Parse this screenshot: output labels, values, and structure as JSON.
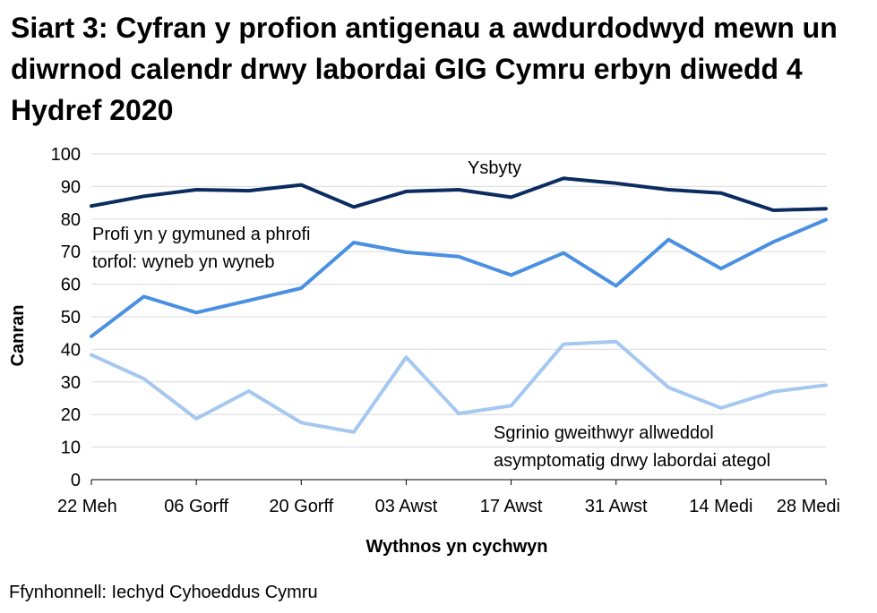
{
  "chart_data": {
    "type": "line",
    "title": "Siart 3: Cyfran y profion antigenau a awdurdodwyd mewn un diwrnod calendr drwy labordai GIG Cymru erbyn diwedd 4 Hydref 2020",
    "xlabel": "Wythnos yn cychwyn",
    "ylabel": "Canran",
    "ylim": [
      0,
      100
    ],
    "yticks": [
      0,
      10,
      20,
      30,
      40,
      50,
      60,
      70,
      80,
      90,
      100
    ],
    "x": [
      "22 Meh",
      "29 Meh",
      "06 Gorff",
      "13 Gorff",
      "20 Gorff",
      "27 Gorff",
      "03 Awst",
      "10 Awst",
      "17 Awst",
      "24 Awst",
      "31 Awst",
      "07 Medi",
      "14 Medi",
      "21 Medi",
      "28 Medi"
    ],
    "xtick_labels": [
      "22 Meh",
      "06 Gorff",
      "20 Gorff",
      "03 Awst",
      "17 Awst",
      "31 Awst",
      "14 Medi",
      "28 Medi"
    ],
    "grid": true,
    "legend": "none",
    "series": [
      {
        "name": "Ysbyty",
        "color": "#0b2c5f",
        "values": [
          84,
          87,
          89,
          88.7,
          90.5,
          83.7,
          88.5,
          89,
          86.7,
          92.5,
          91,
          89,
          88,
          82.7,
          83.2
        ]
      },
      {
        "name": "Profi yn y gymuned a phrofi torfol: wyneb yn wyneb",
        "color": "#4a90e2",
        "values": [
          44,
          56.2,
          51.3,
          55,
          58.8,
          72.8,
          69.8,
          68.5,
          62.8,
          69.6,
          59.5,
          73.7,
          64.8,
          73,
          79.8
        ]
      },
      {
        "name": "Sgrinio gweithwyr allweddol asymptomatig drwy labordai ategol",
        "color": "#a5c8f0",
        "values": [
          38.3,
          31,
          18.7,
          27.2,
          17.5,
          14.6,
          37.6,
          20.3,
          22.7,
          41.6,
          42.4,
          28.3,
          22,
          27,
          29
        ]
      }
    ],
    "annotations": {
      "ysbyty": "Ysbyty",
      "profi_line1": "Profi yn y gymuned a phrofi",
      "profi_line2": "torfol: wyneb yn wyneb",
      "sgrinio_line1": "Sgrinio gweithwyr allweddol",
      "sgrinio_line2": "asymptomatig drwy labordai ategol"
    },
    "source": "Ffynhonnell: Iechyd Cyhoeddus Cymru"
  }
}
